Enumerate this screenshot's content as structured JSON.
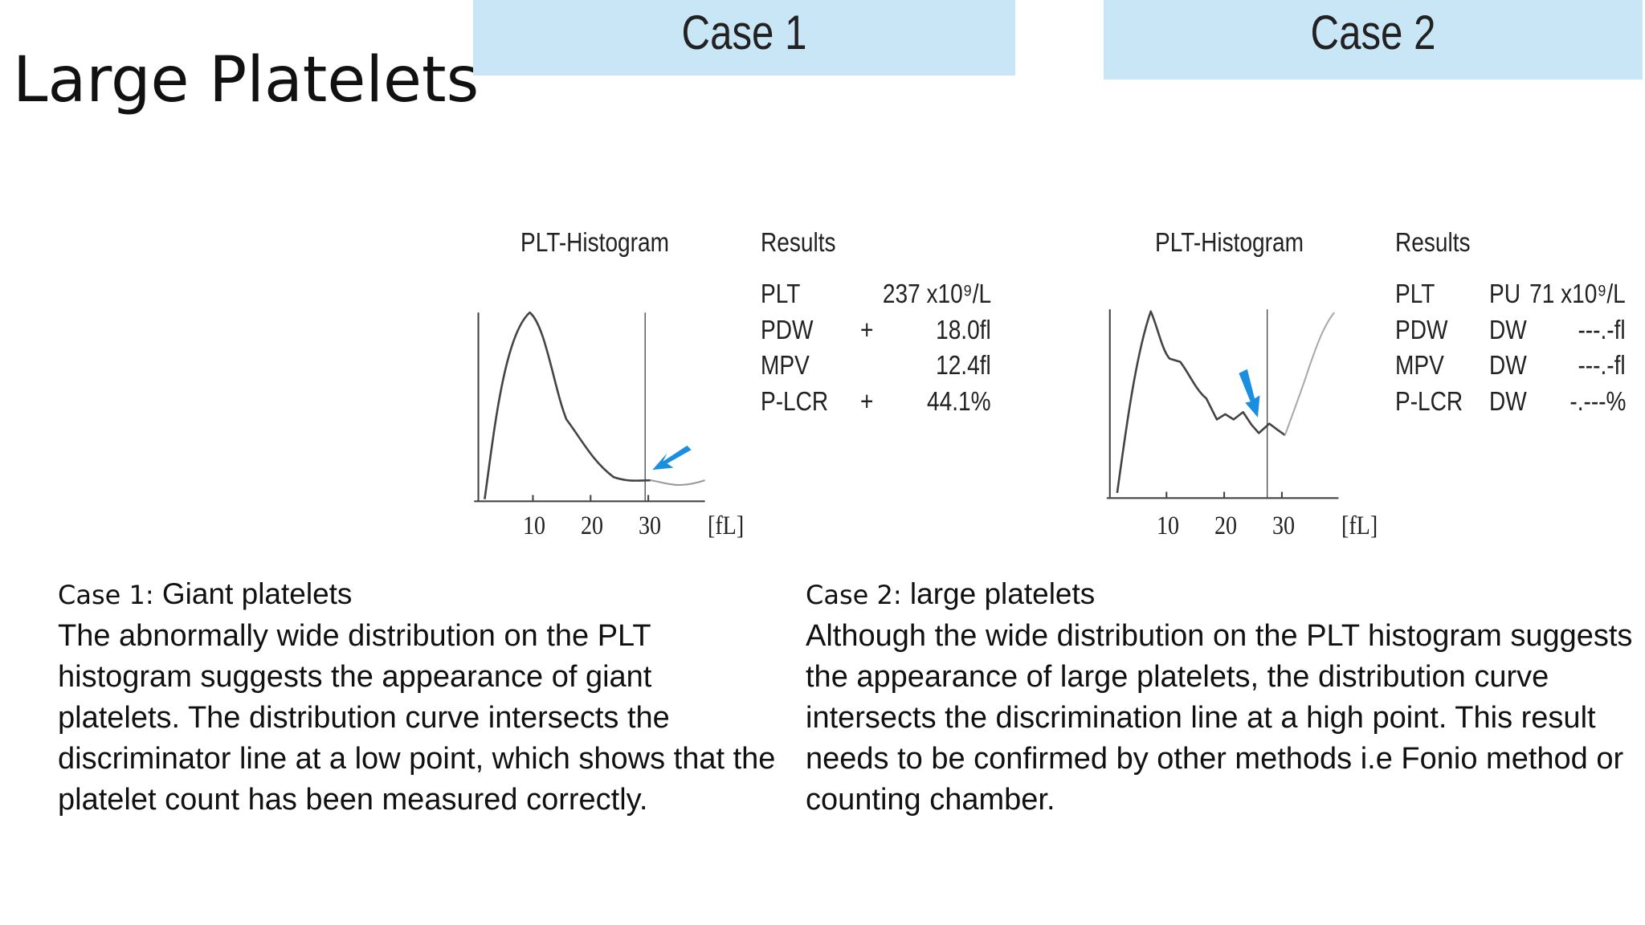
{
  "title": "Large Platelets",
  "cases": [
    {
      "header": "Case 1",
      "histogram": {
        "title": "PLT-Histogram",
        "ticks": [
          "10",
          "20",
          "30",
          "[fL]"
        ]
      },
      "results": {
        "title": "Results",
        "rows": [
          {
            "name": "PLT",
            "value": "237 x10⁹/L"
          },
          {
            "name": "PDW",
            "flag": "+",
            "value": "18.0fl"
          },
          {
            "name": "MPV",
            "value": "12.4fl"
          },
          {
            "name": "P-LCR",
            "flag": "+",
            "value": "44.1%"
          }
        ]
      },
      "caption": {
        "label": "Case 1:",
        "heading": "Giant platelets",
        "text": "The abnormally wide distribution on the PLT histogram suggests the appearance of giant platelets. The distribution curve intersects the discriminator line at a low point, which shows that the platelet count has been measured correctly."
      }
    },
    {
      "header": "Case 2",
      "histogram": {
        "title": "PLT-Histogram",
        "ticks": [
          "10",
          "20",
          "30",
          "[fL]"
        ]
      },
      "results": {
        "title": "Results",
        "rows": [
          {
            "name": "PLT",
            "flag": "PU",
            "value": "71 x10⁹/L"
          },
          {
            "name": "PDW",
            "flag": "DW",
            "value": "---.-fl"
          },
          {
            "name": "MPV",
            "flag": "DW",
            "value": "---.-fl"
          },
          {
            "name": "P-LCR",
            "flag": "DW",
            "value": "-.---%"
          }
        ]
      },
      "caption": {
        "label": "Case 2:",
        "heading": "large platelets",
        "text": "Although the wide distribution on the PLT histogram suggests the appearance of large platelets, the distribution curve intersects the discrimination line at a high point. This result needs to be confirmed by other methods i.e Fonio method or counting chamber."
      }
    }
  ]
}
